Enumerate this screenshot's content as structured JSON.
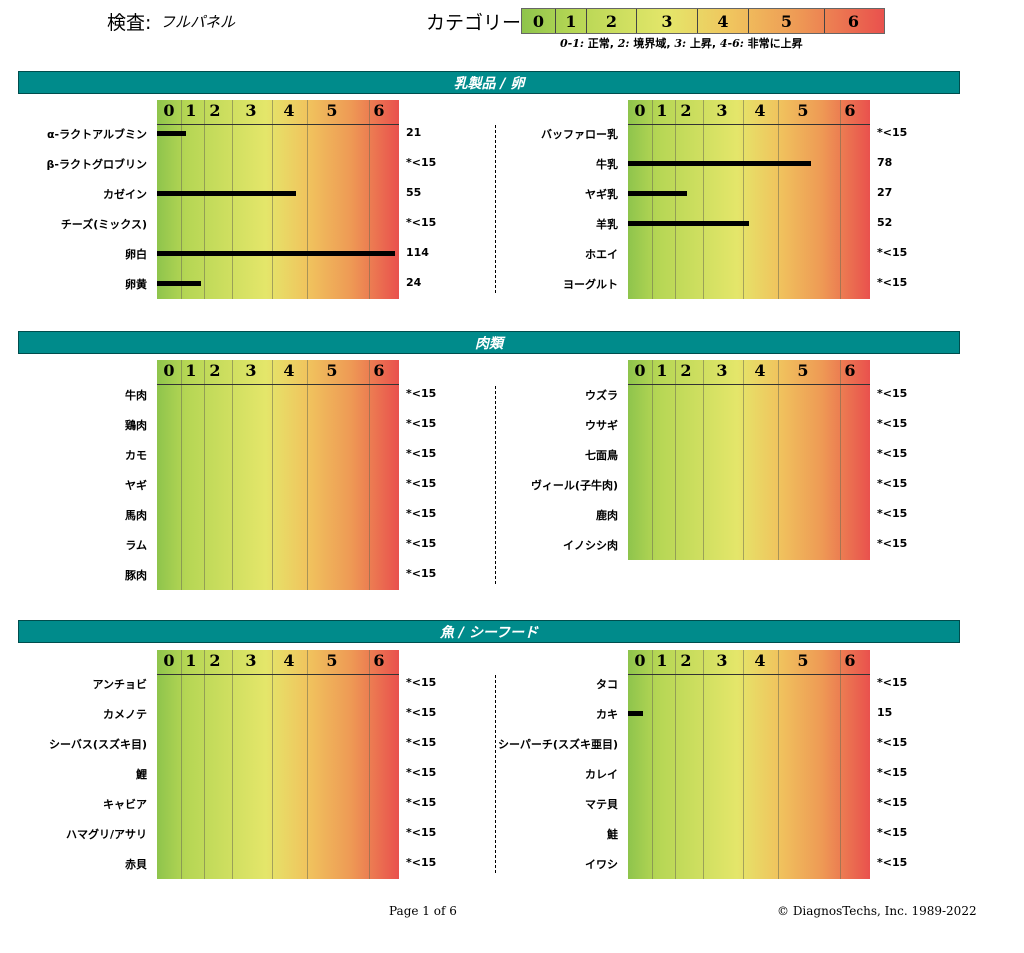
{
  "header": {
    "test_label": "検査:",
    "test_value": "フルパネル",
    "category_label": "カテゴリー:",
    "categories": [
      "0",
      "1",
      "2",
      "3",
      "4",
      "5",
      "6"
    ],
    "note_parts": [
      "0-1:",
      " 正常, ",
      "2:",
      " 境界域, ",
      "3:",
      " 上昇, ",
      "4-6:",
      " 非常に上昇"
    ]
  },
  "colors": {
    "section_bar": "#008b8b",
    "low": "#8ec44c",
    "mid": "#e4e66a",
    "high": "#e9514d"
  },
  "axis_ticks": [
    "0",
    "1",
    "2",
    "3",
    "4",
    "5",
    "6"
  ],
  "sections": [
    {
      "title": "乳製品 / 卵",
      "left": [
        {
          "label": "α-ラクトアルブミン",
          "value": "21",
          "level": 0.8
        },
        {
          "label": "β-ラクトグロブリン",
          "value": "*<15",
          "level": 0
        },
        {
          "label": "カゼイン",
          "value": "55",
          "level": 3.8
        },
        {
          "label": "チーズ(ミックス)",
          "value": "*<15",
          "level": 0
        },
        {
          "label": "卵白",
          "value": "114",
          "level": 6.5
        },
        {
          "label": "卵黄",
          "value": "24",
          "level": 1.2
        }
      ],
      "right": [
        {
          "label": "バッファロー乳",
          "value": "*<15",
          "level": 0
        },
        {
          "label": "牛乳",
          "value": "78",
          "level": 5.0
        },
        {
          "label": "ヤギ乳",
          "value": "27",
          "level": 1.6
        },
        {
          "label": "羊乳",
          "value": "52",
          "level": 3.3
        },
        {
          "label": "ホエイ",
          "value": "*<15",
          "level": 0
        },
        {
          "label": "ヨーグルト",
          "value": "*<15",
          "level": 0
        }
      ]
    },
    {
      "title": "肉類",
      "left": [
        {
          "label": "牛肉",
          "value": "*<15",
          "level": 0
        },
        {
          "label": "鶏肉",
          "value": "*<15",
          "level": 0
        },
        {
          "label": "カモ",
          "value": "*<15",
          "level": 0
        },
        {
          "label": "ヤギ",
          "value": "*<15",
          "level": 0
        },
        {
          "label": "馬肉",
          "value": "*<15",
          "level": 0
        },
        {
          "label": "ラム",
          "value": "*<15",
          "level": 0
        },
        {
          "label": "豚肉",
          "value": "*<15",
          "level": 0
        }
      ],
      "right": [
        {
          "label": "ウズラ",
          "value": "*<15",
          "level": 0
        },
        {
          "label": "ウサギ",
          "value": "*<15",
          "level": 0
        },
        {
          "label": "七面鳥",
          "value": "*<15",
          "level": 0
        },
        {
          "label": "ヴィール(子牛肉)",
          "value": "*<15",
          "level": 0
        },
        {
          "label": "鹿肉",
          "value": "*<15",
          "level": 0
        },
        {
          "label": "イノシシ肉",
          "value": "*<15",
          "level": 0
        }
      ]
    },
    {
      "title": "魚 / シーフード",
      "left": [
        {
          "label": "アンチョビ",
          "value": "*<15",
          "level": 0
        },
        {
          "label": "カメノテ",
          "value": "*<15",
          "level": 0
        },
        {
          "label": "シーバス(スズキ目)",
          "value": "*<15",
          "level": 0
        },
        {
          "label": "鯉",
          "value": "*<15",
          "level": 0
        },
        {
          "label": "キャビア",
          "value": "*<15",
          "level": 0
        },
        {
          "label": "ハマグリ/アサリ",
          "value": "*<15",
          "level": 0
        },
        {
          "label": "赤貝",
          "value": "*<15",
          "level": 0
        }
      ],
      "right": [
        {
          "label": "タコ",
          "value": "*<15",
          "level": 0
        },
        {
          "label": "カキ",
          "value": "15",
          "level": 0.4
        },
        {
          "label": "シーパーチ(スズキ亜目)",
          "value": "*<15",
          "level": 0
        },
        {
          "label": "カレイ",
          "value": "*<15",
          "level": 0
        },
        {
          "label": "マテ貝",
          "value": "*<15",
          "level": 0
        },
        {
          "label": "鮭",
          "value": "*<15",
          "level": 0
        },
        {
          "label": "イワシ",
          "value": "*<15",
          "level": 0
        }
      ]
    }
  ],
  "footer": {
    "page": "Page 1 of 6",
    "copyright": "© DiagnosTechs, Inc. 1989-2022"
  }
}
